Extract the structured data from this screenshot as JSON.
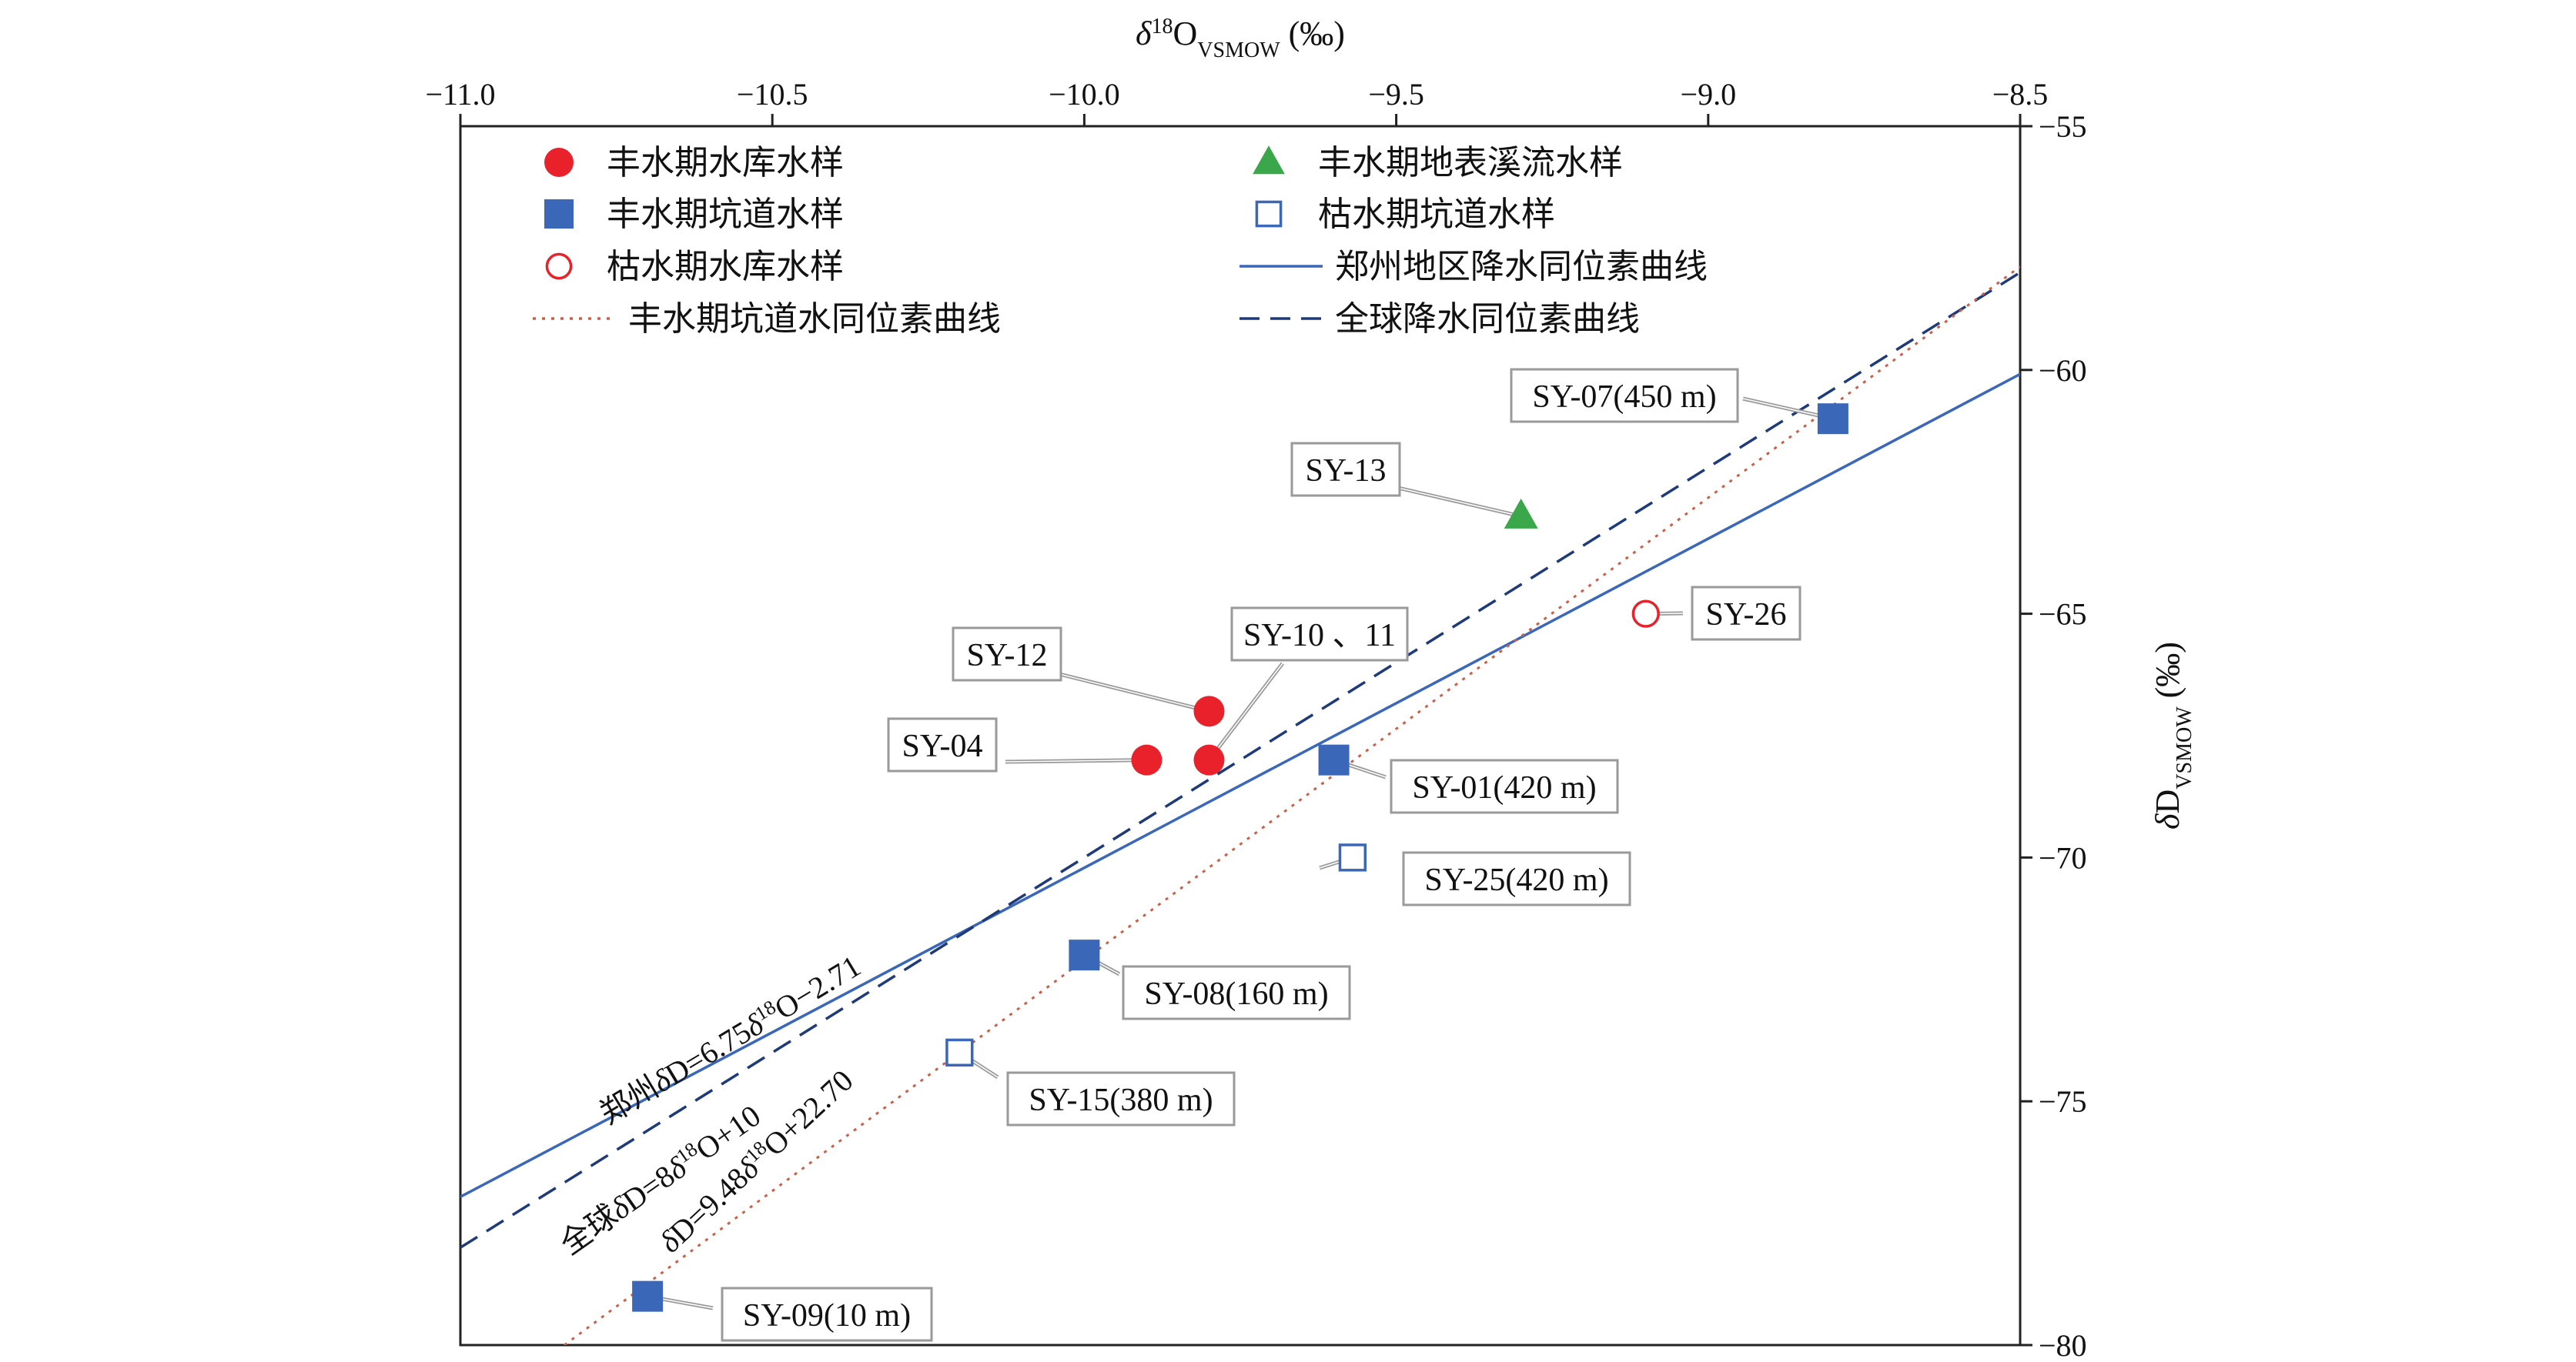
{
  "chart_data": {
    "type": "scatter",
    "x_axis": {
      "label_main": "δ",
      "label_sup": "18",
      "label_body": "O",
      "label_sub": "VSMOW",
      "label_unit": " (‰)",
      "range": [
        -11.0,
        -8.5
      ],
      "ticks": [
        -11.0,
        -10.5,
        -10.0,
        -9.5,
        -9.0,
        -8.5
      ],
      "tick_labels": [
        "−11.0",
        "−10.5",
        "−10.0",
        "−9.5",
        "−9.0",
        "−8.5"
      ],
      "position": "top"
    },
    "y_axis": {
      "label_main": "δ",
      "label_body": "D",
      "label_sub": "VSMOW",
      "label_unit": " (‰)",
      "range": [
        -80,
        -55
      ],
      "ticks": [
        -55,
        -60,
        -65,
        -70,
        -75,
        -80
      ],
      "tick_labels": [
        "−55",
        "−60",
        "−65",
        "−70",
        "−75",
        "−80"
      ],
      "position": "right"
    },
    "grid": false,
    "legend_position": "top-left (inside)",
    "series": [
      {
        "name": "丰水期水库水样",
        "marker": "circle-filled",
        "color": "#e8212b",
        "points": [
          {
            "x": -9.8,
            "y": -67,
            "label": "SY-12"
          },
          {
            "x": -9.9,
            "y": -68,
            "label": "SY-04"
          },
          {
            "x": -9.8,
            "y": -68,
            "label": "SY-10 、11"
          }
        ]
      },
      {
        "name": "丰水期坑道水样",
        "marker": "square-filled",
        "color": "#3a67b8",
        "points": [
          {
            "x": -8.8,
            "y": -61,
            "label": "SY-07(450 m)"
          },
          {
            "x": -9.6,
            "y": -68,
            "label": "SY-01(420 m)"
          },
          {
            "x": -10.0,
            "y": -72,
            "label": "SY-08(160 m)"
          },
          {
            "x": -10.7,
            "y": -79,
            "label": "SY-09(10 m)"
          }
        ]
      },
      {
        "name": "枯水期水库水样",
        "marker": "circle-open",
        "color": "#e8212b",
        "points": [
          {
            "x": -9.1,
            "y": -65,
            "label": "SY-26"
          }
        ]
      },
      {
        "name": "丰水期地表溪流水样",
        "marker": "triangle-filled",
        "color": "#3aa84a",
        "points": [
          {
            "x": -9.3,
            "y": -63,
            "label": "SY-13"
          }
        ]
      },
      {
        "name": "枯水期坑道水样",
        "marker": "square-open",
        "color": "#3a67b8",
        "points": [
          {
            "x": -9.57,
            "y": -70,
            "label": "SY-25(420 m)"
          },
          {
            "x": -10.2,
            "y": -74,
            "label": "SY-15(380 m)"
          }
        ]
      }
    ],
    "lines": [
      {
        "name": "郑州地区降水同位素曲线",
        "style": "solid",
        "color": "#3a67b8",
        "slope": 6.75,
        "intercept": -2.71,
        "eq": {
          "prefix": "郑州",
          "d": "δ",
          "mid": "D=6.75",
          "d2": "δ",
          "sup": "18",
          "tail": "O−2.71"
        }
      },
      {
        "name": "全球降水同位素曲线",
        "style": "dashed",
        "color": "#1f3a78",
        "slope": 8,
        "intercept": 10,
        "eq": {
          "prefix": "全球",
          "d": "δ",
          "mid": "D=8",
          "d2": "δ",
          "sup": "18",
          "tail": "O+10"
        }
      },
      {
        "name": "丰水期坑道水同位素曲线",
        "style": "dotted",
        "color": "#c9614a",
        "slope": 9.48,
        "intercept": 22.7,
        "eq": {
          "prefix": "",
          "d": "δ",
          "mid": "D=9.48",
          "d2": "δ",
          "sup": "18",
          "tail": "O+22.70"
        }
      }
    ]
  }
}
